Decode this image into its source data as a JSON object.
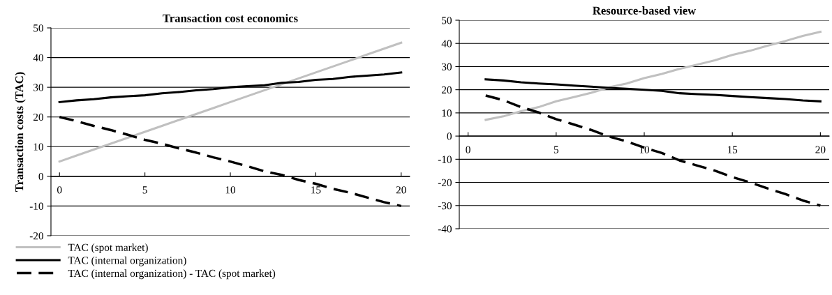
{
  "chart_data": [
    {
      "type": "line",
      "title": "Transaction cost economics",
      "ylabel": "Transaction costs (TAC)",
      "xlim": [
        -0.5,
        20.5
      ],
      "xticks": [
        0,
        5,
        10,
        15,
        20
      ],
      "ylim": [
        -20,
        50
      ],
      "yticks": [
        -20,
        -10,
        0,
        10,
        20,
        30,
        40,
        50
      ],
      "grid": "y",
      "legend": "bottom",
      "marker": "none",
      "x": [
        0,
        1,
        2,
        3,
        4,
        5,
        6,
        7,
        8,
        9,
        10,
        11,
        12,
        13,
        14,
        15,
        16,
        17,
        18,
        19,
        20
      ],
      "series": [
        {
          "name": "TAC (spot market)",
          "color": "#c0c0c0",
          "line_style": "solid",
          "values": [
            5,
            7,
            9,
            11,
            13,
            15,
            17,
            19,
            21,
            23,
            25,
            27,
            29,
            31,
            33,
            35,
            37,
            39,
            41,
            43,
            45
          ]
        },
        {
          "name": "TAC (internal organization)",
          "color": "#000000",
          "line_style": "solid",
          "values": [
            25,
            25.6,
            26,
            26.6,
            27,
            27.3,
            28,
            28.4,
            29,
            29.4,
            30,
            30.4,
            30.7,
            31.5,
            31.8,
            32.5,
            32.8,
            33.5,
            33.9,
            34.3,
            35
          ]
        },
        {
          "name": "TAC (internal organization) - TAC (spot market)",
          "color": "#000000",
          "line_style": "dashed",
          "values": [
            20,
            18.6,
            17,
            15.6,
            14,
            12.3,
            11,
            9.4,
            8,
            6.4,
            5,
            3.4,
            1.7,
            0.5,
            -1.2,
            -2.5,
            -4.2,
            -5.5,
            -7.1,
            -8.7,
            -10
          ]
        }
      ]
    },
    {
      "type": "line",
      "title": "Resource-based view",
      "xlim": [
        -0.5,
        20.5
      ],
      "xticks": [
        0,
        5,
        10,
        15,
        20
      ],
      "ylim": [
        -40,
        50
      ],
      "yticks": [
        -40,
        -30,
        -20,
        -10,
        0,
        10,
        20,
        30,
        40,
        50
      ],
      "grid": "y",
      "marker": "none",
      "x": [
        1,
        2,
        3,
        4,
        5,
        6,
        7,
        8,
        9,
        10,
        11,
        12,
        13,
        14,
        15,
        16,
        17,
        18,
        19,
        20
      ],
      "series": [
        {
          "color": "#c0c0c0",
          "line_style": "solid",
          "values": [
            7,
            8.5,
            10.7,
            12.5,
            15,
            16.8,
            18.7,
            21,
            22.7,
            25,
            26.8,
            29,
            30.8,
            32.7,
            35,
            36.8,
            39,
            41,
            43.2,
            45
          ]
        },
        {
          "color": "#000000",
          "line_style": "solid",
          "values": [
            24.5,
            24,
            23.2,
            22.7,
            22.3,
            21.8,
            21.3,
            20.8,
            20.4,
            20,
            19.5,
            18.5,
            18.1,
            17.8,
            17.3,
            16.8,
            16.4,
            16,
            15.4,
            15
          ]
        },
        {
          "color": "#000000",
          "line_style": "dashed",
          "values": [
            17.5,
            15.5,
            12.5,
            10.2,
            7.3,
            5,
            2.6,
            -0.2,
            -2.3,
            -5,
            -7.3,
            -10.5,
            -12.7,
            -14.9,
            -17.7,
            -20,
            -22.6,
            -25,
            -27.8,
            -30
          ]
        }
      ]
    }
  ]
}
